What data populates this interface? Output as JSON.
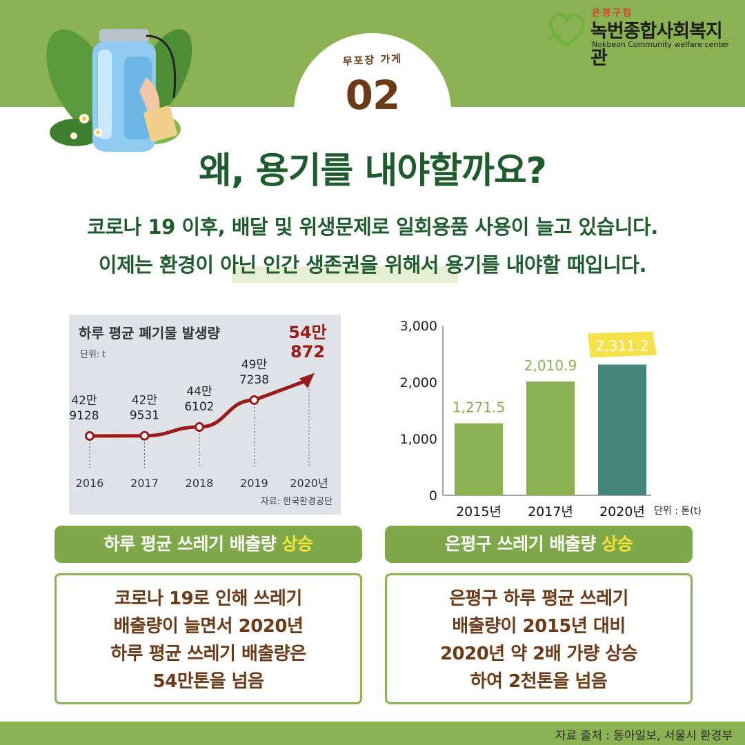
{
  "header": {
    "store_label": "무포장 가게",
    "store_number": "02",
    "logo_small": "은평구립",
    "logo_main": "녹번종합사회복지관",
    "logo_en": "Nokbeon Community welfare center"
  },
  "headline": "왜, 용기를 내야할까요?",
  "body": {
    "line1": "코로나 19 이후, 배달 및 위생문제로 일회용품 사용이 늘고 있습니다.",
    "line2": "이제는 환경이 아닌 인간 생존권을 위해서 용기를 내야할 때입니다."
  },
  "left_panel": {
    "label_prefix": "하루 평균 쓰레기 배출량 ",
    "label_highlight": "상승",
    "card_lines": [
      "코로나 19로 인해 쓰레기",
      "배출량이 늘면서 2020년",
      "하루 평균 쓰레기 배출량은",
      "54만톤을 넘음"
    ]
  },
  "right_panel": {
    "label_prefix": "은평구 쓰레기 배출량 ",
    "label_highlight": "상승",
    "card_lines": [
      "은평구 하루 평균 쓰레기",
      "배출량이 2015년 대비",
      "2020년 약 2배 가량 상승",
      "하여 2천톤을 넘음"
    ]
  },
  "footer": "자료 출처 : 동아일보, 서울시 환경부",
  "colors": {
    "band_green": "#8ab152",
    "headline_green": "#1e5c2e",
    "brown": "#6b3a16",
    "bar_green": "#8ab152",
    "bar_teal": "#44877a",
    "line_red": "#9b1b1b",
    "highlight_yellow": "#f3e33b"
  },
  "chart_data": [
    {
      "type": "line",
      "title": "하루 평균 폐기물 발생량",
      "unit_label": "단위: t",
      "source": "자료: 한국환경공단",
      "categories": [
        "2016",
        "2017",
        "2018",
        "2019",
        "2020년"
      ],
      "values": [
        429128,
        429531,
        446102,
        497238,
        540872
      ],
      "value_labels": [
        [
          "42만",
          "9128"
        ],
        [
          "42만",
          "9531"
        ],
        [
          "44만",
          "6102"
        ],
        [
          "49만",
          "7238"
        ],
        [
          "54만",
          "872"
        ]
      ],
      "ylim": [
        400000,
        560000
      ],
      "grid": false
    },
    {
      "type": "bar",
      "categories": [
        "2015년",
        "2017년",
        "2020년"
      ],
      "values": [
        1271.5,
        2010.9,
        2311.2
      ],
      "value_labels": [
        "1,271.5",
        "2,010.9",
        "2,311.2"
      ],
      "yticks": [
        "0",
        "1,000",
        "2,000",
        "3,000"
      ],
      "ytick_values": [
        0,
        1000,
        2000,
        3000
      ],
      "ylim": [
        0,
        3000
      ],
      "unit_label": "단위 : 톤(t)",
      "grid": false
    }
  ]
}
